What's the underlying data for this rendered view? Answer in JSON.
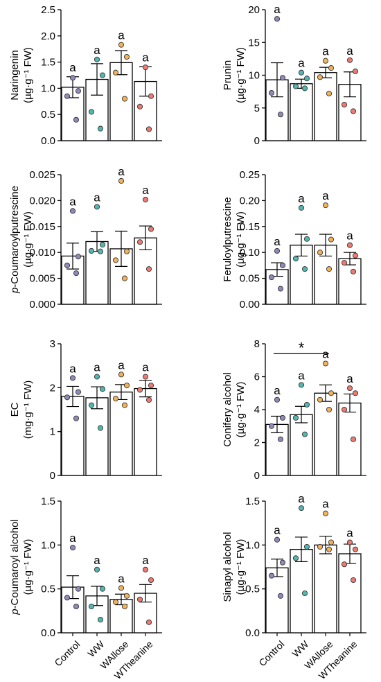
{
  "groups": [
    "Control",
    "WW",
    "WAllose",
    "WTheanine"
  ],
  "group_colors": [
    "#8E8AB8",
    "#52B7B0",
    "#F2B25A",
    "#EE7A72"
  ],
  "chart_data": [
    {
      "type": "bar",
      "ylabel_lines": [
        "Naringenin",
        "(µg·g⁻¹ FW)"
      ],
      "ylim": [
        0,
        2.5
      ],
      "yticks": [
        "0.0",
        "0.5",
        "1.0",
        "1.5",
        "2.0",
        "2.5"
      ],
      "tick_values": [
        0,
        0.5,
        1.0,
        1.5,
        2.0,
        2.5
      ],
      "categories": [
        "Control",
        "WW",
        "WAllose",
        "WTheanine"
      ],
      "values": [
        1.02,
        1.17,
        1.49,
        1.13
      ],
      "errors": [
        0.2,
        0.3,
        0.23,
        0.28
      ],
      "points": [
        [
          1.2,
          0.95,
          0.85,
          0.4
        ],
        [
          1.55,
          1.25,
          0.55,
          0.23
        ],
        [
          1.83,
          1.6,
          1.3,
          0.8
        ],
        [
          1.4,
          0.85,
          0.65,
          0.22
        ]
      ],
      "letters": [
        "a",
        "a",
        "a",
        "a"
      ],
      "show_xlabels": false
    },
    {
      "type": "bar",
      "ylabel_lines": [
        "Prunin",
        "(µg·g⁻¹ FW)"
      ],
      "ylim": [
        0,
        20
      ],
      "yticks": [
        "0",
        "5",
        "10",
        "15",
        "20"
      ],
      "tick_values": [
        0,
        5,
        10,
        15,
        20
      ],
      "categories": [
        "Control",
        "WW",
        "WAllose",
        "WTheanine"
      ],
      "values": [
        9.3,
        8.7,
        10.4,
        8.6
      ],
      "errors": [
        2.6,
        0.7,
        0.8,
        1.9
      ],
      "points": [
        [
          18.6,
          9.6,
          7.3,
          4.0
        ],
        [
          10.4,
          9.5,
          8.3,
          8.0
        ],
        [
          12.2,
          11.1,
          9.7,
          7.2
        ],
        [
          12.3,
          10.6,
          5.5,
          4.5
        ]
      ],
      "letters": [
        "a",
        "a",
        "a",
        "a"
      ],
      "show_xlabels": false
    },
    {
      "type": "bar",
      "ylabel_lines": [
        "p-Coumaroylputrescine",
        "(µg·g⁻¹ FW)"
      ],
      "ylim": [
        0,
        0.025
      ],
      "yticks": [
        "0.000",
        "0.005",
        "0.010",
        "0.015",
        "0.020",
        "0.025"
      ],
      "tick_values": [
        0,
        0.005,
        0.01,
        0.015,
        0.02,
        0.025
      ],
      "categories": [
        "Control",
        "WW",
        "WAllose",
        "WTheanine"
      ],
      "values": [
        0.0093,
        0.0121,
        0.0107,
        0.0128
      ],
      "errors": [
        0.0025,
        0.0019,
        0.0034,
        0.0023
      ],
      "points": [
        [
          0.018,
          0.0092,
          0.0075,
          0.006
        ],
        [
          0.0188,
          0.0115,
          0.0103,
          0.0102
        ],
        [
          0.0238,
          0.0102,
          0.0085,
          0.005
        ],
        [
          0.0202,
          0.0145,
          0.012,
          0.0068
        ]
      ],
      "letters": [
        "a",
        "a",
        "a",
        "a"
      ],
      "show_xlabels": false
    },
    {
      "type": "bar",
      "ylabel_lines": [
        "Feruloylputrescine",
        "(µg·g⁻¹ FW)"
      ],
      "ylim": [
        0,
        0.25
      ],
      "yticks": [
        "0.00",
        "0.05",
        "0.10",
        "0.15",
        "0.20",
        "0.25"
      ],
      "tick_values": [
        0,
        0.05,
        0.1,
        0.15,
        0.2,
        0.25
      ],
      "categories": [
        "Control",
        "WW",
        "WAllose",
        "WTheanine"
      ],
      "values": [
        0.067,
        0.114,
        0.114,
        0.088
      ],
      "errors": [
        0.013,
        0.021,
        0.021,
        0.012
      ],
      "points": [
        [
          0.103,
          0.075,
          0.052,
          0.03
        ],
        [
          0.186,
          0.126,
          0.088,
          0.068
        ],
        [
          0.191,
          0.125,
          0.1,
          0.068
        ],
        [
          0.114,
          0.094,
          0.08,
          0.063
        ]
      ],
      "letters": [
        "a",
        "a",
        "a",
        "a"
      ],
      "show_xlabels": false
    },
    {
      "type": "bar",
      "ylabel_lines": [
        "EC",
        "(mg·g⁻¹ FW)"
      ],
      "ylim": [
        0,
        3
      ],
      "yticks": [
        "0",
        "1",
        "2",
        "3"
      ],
      "tick_values": [
        0,
        1,
        2,
        3
      ],
      "categories": [
        "Control",
        "WW",
        "WAllose",
        "WTheanine"
      ],
      "values": [
        1.8,
        1.77,
        1.9,
        1.98
      ],
      "errors": [
        0.23,
        0.25,
        0.17,
        0.19
      ],
      "points": [
        [
          2.22,
          1.9,
          1.78,
          1.3
        ],
        [
          2.25,
          1.97,
          1.6,
          1.08
        ],
        [
          2.3,
          2.05,
          1.75,
          1.6
        ],
        [
          2.25,
          2.05,
          1.95,
          1.72
        ]
      ],
      "letters": [
        "a",
        "a",
        "a",
        "a"
      ],
      "show_xlabels": false
    },
    {
      "type": "bar",
      "ylabel_lines": [
        "Conifery alcohol",
        "(µg·g⁻¹ FW)"
      ],
      "ylim": [
        0,
        8
      ],
      "yticks": [
        "0",
        "2",
        "4",
        "6",
        "8"
      ],
      "tick_values": [
        0,
        2,
        4,
        6,
        8
      ],
      "categories": [
        "Control",
        "WW",
        "WAllose",
        "WTheanine"
      ],
      "values": [
        3.1,
        3.7,
        5.0,
        4.4
      ],
      "errors": [
        0.5,
        0.5,
        0.5,
        0.55
      ],
      "points": [
        [
          4.6,
          3.5,
          3.0,
          2.2
        ],
        [
          5.5,
          4.3,
          3.5,
          2.5
        ],
        [
          6.8,
          5.0,
          4.6,
          4.0
        ],
        [
          5.3,
          5.0,
          4.0,
          2.2
        ]
      ],
      "letters": [
        "a",
        "a",
        "a",
        "a"
      ],
      "significance": {
        "label": "*",
        "from": 0,
        "to": 2,
        "y": 7.4
      },
      "show_xlabels": false
    },
    {
      "type": "bar",
      "ylabel_lines": [
        "p-Coumaroyl alcohol",
        "(µg·g⁻¹ FW)"
      ],
      "ylim": [
        0,
        1.5
      ],
      "yticks": [
        "0.0",
        "0.5",
        "1.0",
        "1.5"
      ],
      "tick_values": [
        0,
        0.5,
        1.0,
        1.5
      ],
      "categories": [
        "Control",
        "WW",
        "WAllose",
        "WTheanine"
      ],
      "values": [
        0.52,
        0.42,
        0.38,
        0.45
      ],
      "errors": [
        0.13,
        0.11,
        0.06,
        0.1
      ],
      "points": [
        [
          0.97,
          0.5,
          0.4,
          0.3
        ],
        [
          0.72,
          0.5,
          0.3,
          0.15
        ],
        [
          0.51,
          0.42,
          0.35,
          0.3
        ],
        [
          0.72,
          0.6,
          0.38,
          0.12
        ]
      ],
      "letters": [
        "a",
        "a",
        "a",
        "a"
      ],
      "show_xlabels": true
    },
    {
      "type": "bar",
      "ylabel_lines": [
        "Sinapyl alcohol",
        "(µg·g⁻¹ FW)"
      ],
      "ylim": [
        0,
        1.5
      ],
      "yticks": [
        "0.0",
        "0.5",
        "1.0",
        "1.5"
      ],
      "tick_values": [
        0,
        0.5,
        1.0,
        1.5
      ],
      "categories": [
        "Control",
        "WW",
        "WAllose",
        "WTheanine"
      ],
      "values": [
        0.74,
        0.95,
        1.0,
        0.9
      ],
      "errors": [
        0.1,
        0.14,
        0.1,
        0.11
      ],
      "points": [
        [
          1.06,
          0.8,
          0.65,
          0.42
        ],
        [
          1.42,
          0.98,
          0.85,
          0.45
        ],
        [
          1.36,
          1.03,
          0.98,
          0.95
        ],
        [
          1.03,
          0.95,
          0.78,
          0.6
        ]
      ],
      "letters": [
        "a",
        "a",
        "a",
        "a"
      ],
      "show_xlabels": true
    }
  ]
}
